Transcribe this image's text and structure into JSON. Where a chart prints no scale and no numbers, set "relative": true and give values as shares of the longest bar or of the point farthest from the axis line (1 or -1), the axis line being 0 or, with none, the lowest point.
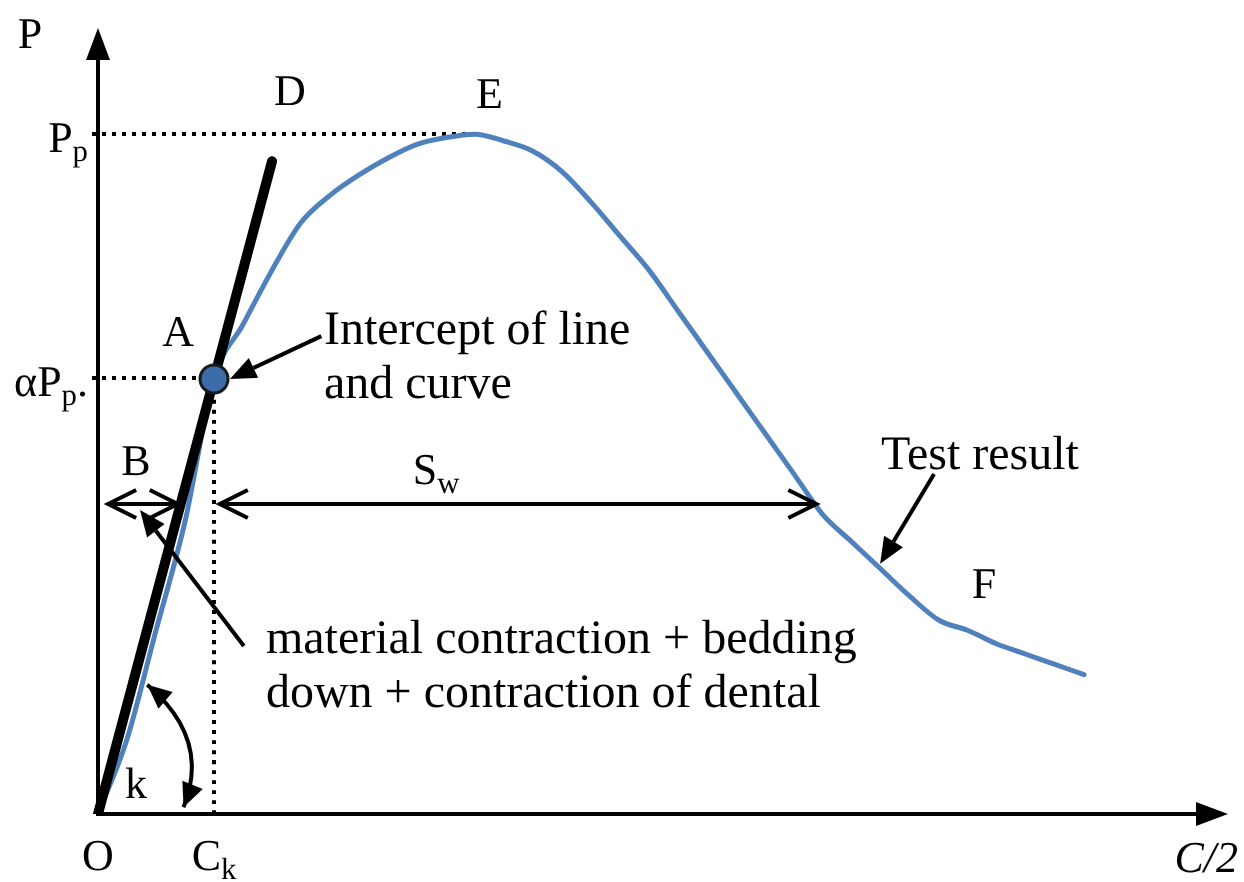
{
  "chart_data": {
    "type": "line",
    "relative": true,
    "xlabel": "C/2",
    "ylabel": "P",
    "categories": [
      "O",
      null,
      null,
      null,
      "C$_{k}$",
      null,
      null,
      null,
      null,
      null,
      null,
      null,
      null,
      null,
      null,
      null,
      null,
      null,
      null,
      null,
      null,
      null,
      null,
      null,
      null,
      null,
      null,
      null,
      null,
      null,
      null,
      null,
      null,
      null,
      null,
      null,
      null,
      null,
      null
    ],
    "series": [
      {
        "color": "#4f81bd",
        "values": [
          0,
          0.11,
          0.27,
          0.43,
          0.64,
          0.72,
          0.8,
          0.87,
          0.91,
          0.94,
          0.965,
          0.985,
          0.995,
          1,
          0.99,
          0.975,
          0.945,
          0.9,
          0.85,
          0.8,
          0.74,
          0.68,
          0.62,
          0.56,
          0.5,
          0.44,
          0.4,
          0.36,
          0.32,
          0.285,
          0.27,
          0.25,
          0.235,
          0.22,
          0.205,
          null,
          null,
          null,
          null
        ]
      },
      {
        "color": "#000000",
        "values": [
          0,
          0.16,
          0.32,
          0.48,
          0.64,
          0.8,
          0.96,
          null,
          null,
          null,
          null,
          null,
          null,
          null,
          null,
          null,
          null,
          null,
          null,
          null,
          null,
          null,
          null,
          null,
          null,
          null,
          null,
          null,
          null,
          null,
          null,
          null,
          null,
          null,
          null,
          null,
          null,
          null,
          null
        ]
      },
      {
        "color": "#000000",
        "line_style": "dotted",
        "x": [
          "C$_{k}$",
          "C$_{k}$"
        ],
        "values": [
          0,
          0.64
        ]
      },
      {
        "type": "scatter",
        "color": "#3d6da8",
        "marker": "circle",
        "values": [
          null,
          null,
          null,
          null,
          0.64,
          null,
          null,
          null,
          null,
          null,
          null,
          null,
          null,
          null,
          null,
          null,
          null,
          null,
          null,
          null,
          null,
          null,
          null,
          null,
          null,
          null,
          null,
          null,
          null,
          null,
          null,
          null,
          null,
          null,
          null,
          null,
          null,
          null,
          null
        ]
      }
    ],
    "ref_lines": [
      {
        "axis": "y",
        "value": 1,
        "label": "P$_{p}$",
        "line_style": "dotted",
        "color": "#000000"
      },
      {
        "axis": "y",
        "value": 0.64,
        "label": "αP$_{p}$.",
        "line_style": "dotted",
        "color": "#000000"
      }
    ],
    "annotations": [
      "D",
      "E",
      "A",
      "Intercept of line and curve",
      "B",
      "S$_{w}$",
      "Test result",
      "F",
      "material contraction + bedding down + contraction of dental",
      "k"
    ]
  }
}
